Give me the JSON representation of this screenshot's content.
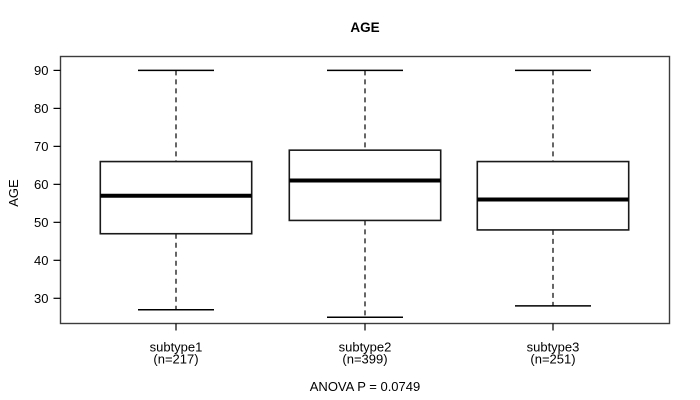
{
  "title": "AGE",
  "chart_data": {
    "type": "boxplot",
    "title": "AGE",
    "xlabel": "",
    "ylabel": "AGE",
    "ylim": [
      23,
      93
    ],
    "yticks": [
      30,
      40,
      50,
      60,
      70,
      80,
      90
    ],
    "grid": false,
    "legend": "none",
    "annotation": "ANOVA P = 0.0749",
    "groups": [
      {
        "label": "subtype1",
        "sublabel": "(n=217)",
        "n": 217,
        "whisker_low": 27,
        "q1": 47,
        "median": 57,
        "q3": 66,
        "whisker_high": 90
      },
      {
        "label": "subtype2",
        "sublabel": "(n=399)",
        "n": 399,
        "whisker_low": 25,
        "q1": 50.5,
        "median": 61,
        "q3": 69,
        "whisker_high": 90
      },
      {
        "label": "subtype3",
        "sublabel": "(n=251)",
        "n": 251,
        "whisker_low": 28,
        "q1": 48,
        "median": 56,
        "q3": 66,
        "whisker_high": 90
      }
    ]
  },
  "colors": {
    "background": "#ffffff",
    "frame": "#3c3c3c",
    "box_border": "#1a1a1a",
    "box_fill": "#ffffff",
    "median": "#000000",
    "whisker": "#000000",
    "text": "#000000"
  }
}
